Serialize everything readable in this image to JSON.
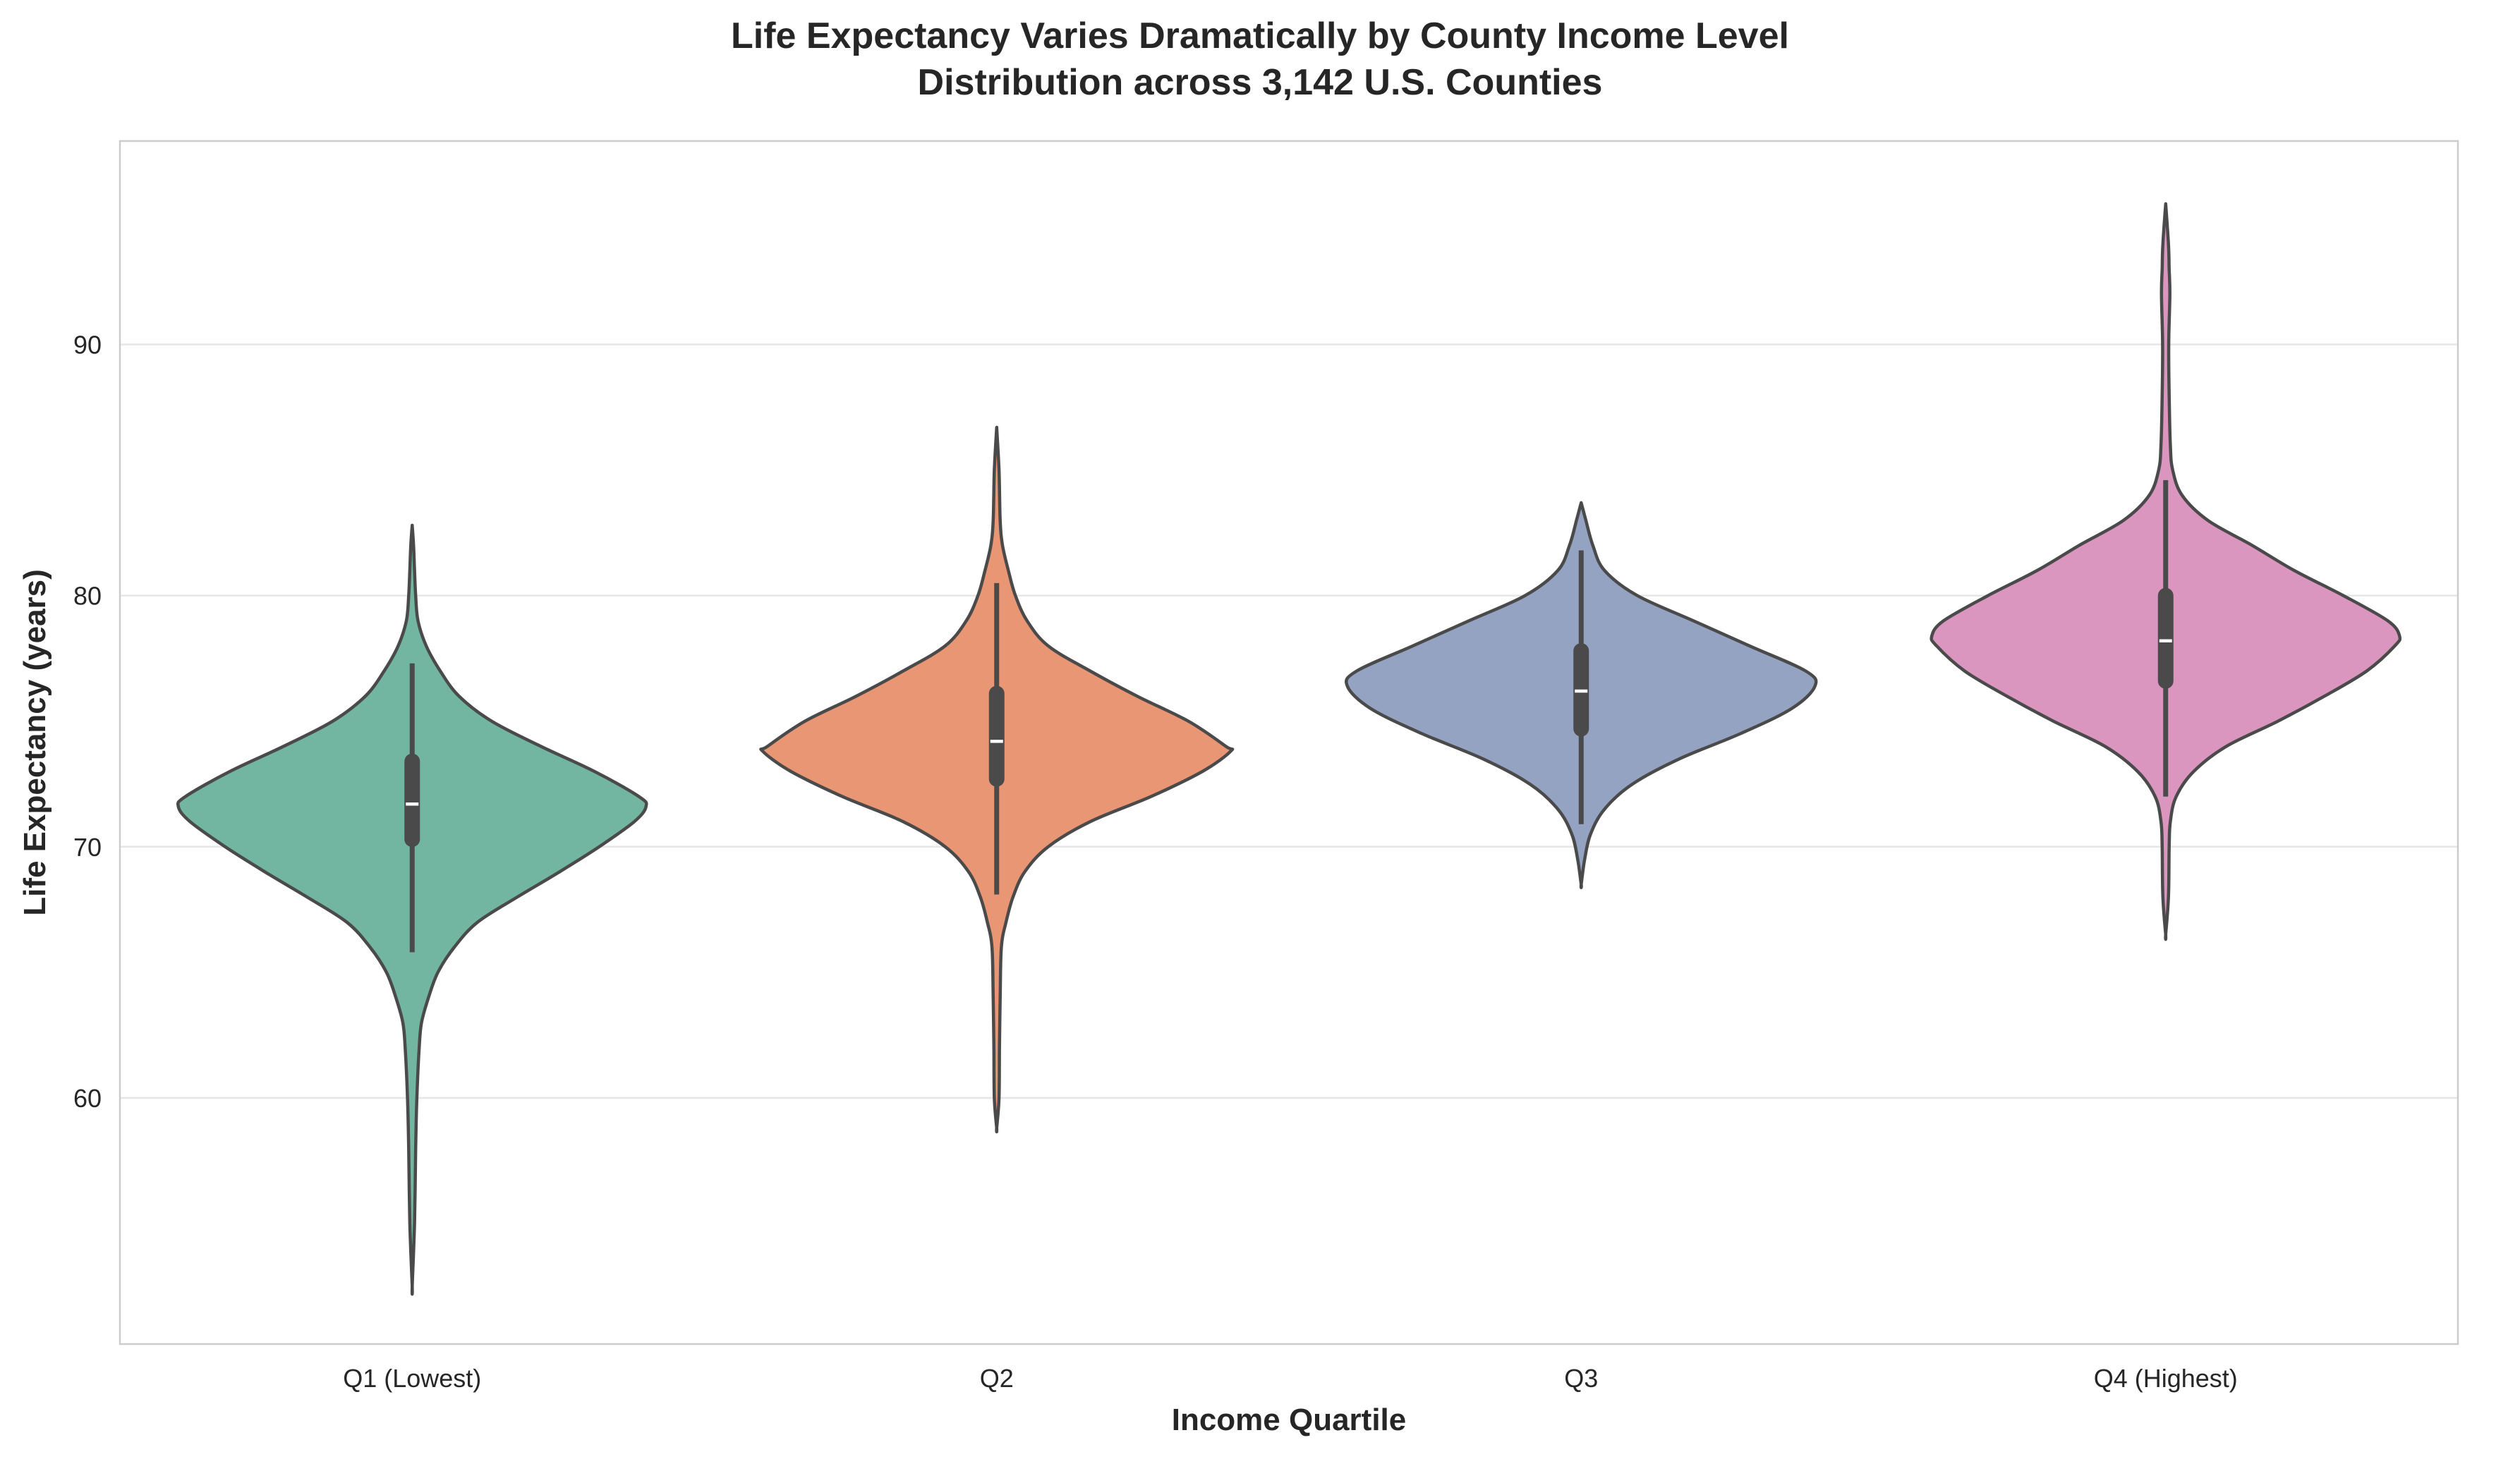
{
  "chart_data": {
    "type": "violin",
    "title": "Life Expectancy Varies Dramatically by County Income Level",
    "subtitle": "Distribution across 3,142 U.S. Counties",
    "xlabel": "Income Quartile",
    "ylabel": "Life Expectancy (years)",
    "ylim": [
      50.2,
      98.1
    ],
    "yticks": [
      60,
      70,
      80,
      90
    ],
    "grid": "horizontal",
    "categories": [
      "Q1 (Lowest)",
      "Q2",
      "Q3",
      "Q4 (Highest)"
    ],
    "colors": [
      "#72b6a1",
      "#e99675",
      "#95a3c3",
      "#db96c0"
    ],
    "outline_color": "#4a4a4a",
    "violins": [
      {
        "category": "Q1 (Lowest)",
        "min": 52.5,
        "max": 82.8,
        "whisker_low": 65.8,
        "whisker_high": 77.3,
        "q1": 70.3,
        "median": 71.7,
        "q3": 73.4,
        "profile": [
          [
            52.5,
            0.0
          ],
          [
            55,
            0.01
          ],
          [
            58,
            0.015
          ],
          [
            60,
            0.02
          ],
          [
            62,
            0.03
          ],
          [
            63,
            0.04
          ],
          [
            64,
            0.07
          ],
          [
            65,
            0.11
          ],
          [
            66,
            0.18
          ],
          [
            67,
            0.28
          ],
          [
            68,
            0.45
          ],
          [
            69,
            0.63
          ],
          [
            70,
            0.8
          ],
          [
            71,
            0.95
          ],
          [
            71.6,
            1.0
          ],
          [
            72,
            0.97
          ],
          [
            73,
            0.78
          ],
          [
            74,
            0.55
          ],
          [
            75,
            0.34
          ],
          [
            76,
            0.2
          ],
          [
            77,
            0.12
          ],
          [
            78,
            0.06
          ],
          [
            79,
            0.025
          ],
          [
            80,
            0.015
          ],
          [
            81,
            0.01
          ],
          [
            82,
            0.006
          ],
          [
            82.8,
            0.0
          ]
        ]
      },
      {
        "category": "Q2",
        "min": 58.8,
        "max": 86.7,
        "whisker_low": 68.1,
        "whisker_high": 80.5,
        "q1": 72.7,
        "median": 74.2,
        "q3": 76.1,
        "profile": [
          [
            58.8,
            0.0
          ],
          [
            60,
            0.01
          ],
          [
            62,
            0.012
          ],
          [
            64,
            0.015
          ],
          [
            66,
            0.02
          ],
          [
            67,
            0.04
          ],
          [
            68,
            0.07
          ],
          [
            69,
            0.12
          ],
          [
            70,
            0.22
          ],
          [
            71,
            0.4
          ],
          [
            72,
            0.66
          ],
          [
            73,
            0.88
          ],
          [
            73.8,
            1.0
          ],
          [
            74,
            0.98
          ],
          [
            75,
            0.82
          ],
          [
            76,
            0.6
          ],
          [
            77,
            0.4
          ],
          [
            78,
            0.22
          ],
          [
            79,
            0.13
          ],
          [
            80,
            0.08
          ],
          [
            81,
            0.05
          ],
          [
            82,
            0.025
          ],
          [
            83,
            0.015
          ],
          [
            85,
            0.01
          ],
          [
            86.7,
            0.0
          ]
        ]
      },
      {
        "category": "Q3",
        "min": 68.5,
        "max": 83.7,
        "whisker_low": 70.9,
        "whisker_high": 81.8,
        "q1": 74.7,
        "median": 76.2,
        "q3": 77.8,
        "profile": [
          [
            68.5,
            0.0
          ],
          [
            69.5,
            0.015
          ],
          [
            70.5,
            0.04
          ],
          [
            71.5,
            0.1
          ],
          [
            72.5,
            0.22
          ],
          [
            73.5,
            0.42
          ],
          [
            74.5,
            0.68
          ],
          [
            75.5,
            0.9
          ],
          [
            76.4,
            1.0
          ],
          [
            77,
            0.96
          ],
          [
            78,
            0.72
          ],
          [
            79,
            0.48
          ],
          [
            80,
            0.24
          ],
          [
            81,
            0.1
          ],
          [
            82,
            0.05
          ],
          [
            83,
            0.02
          ],
          [
            83.7,
            0.0
          ]
        ]
      },
      {
        "category": "Q4 (Highest)",
        "min": 66.5,
        "max": 95.6,
        "whisker_low": 72.0,
        "whisker_high": 84.6,
        "q1": 76.6,
        "median": 78.2,
        "q3": 80.0,
        "profile": [
          [
            66.5,
            0.0
          ],
          [
            68,
            0.012
          ],
          [
            70,
            0.015
          ],
          [
            71,
            0.02
          ],
          [
            72,
            0.045
          ],
          [
            73,
            0.12
          ],
          [
            74,
            0.26
          ],
          [
            75,
            0.48
          ],
          [
            76,
            0.68
          ],
          [
            77,
            0.86
          ],
          [
            78,
            0.98
          ],
          [
            78.4,
            1.0
          ],
          [
            79,
            0.95
          ],
          [
            80,
            0.76
          ],
          [
            81,
            0.55
          ],
          [
            82,
            0.37
          ],
          [
            83,
            0.18
          ],
          [
            84,
            0.07
          ],
          [
            85,
            0.03
          ],
          [
            86,
            0.02
          ],
          [
            88,
            0.015
          ],
          [
            90,
            0.013
          ],
          [
            92,
            0.018
          ],
          [
            93,
            0.015
          ],
          [
            94,
            0.012
          ],
          [
            95.6,
            0.0
          ]
        ]
      }
    ]
  }
}
